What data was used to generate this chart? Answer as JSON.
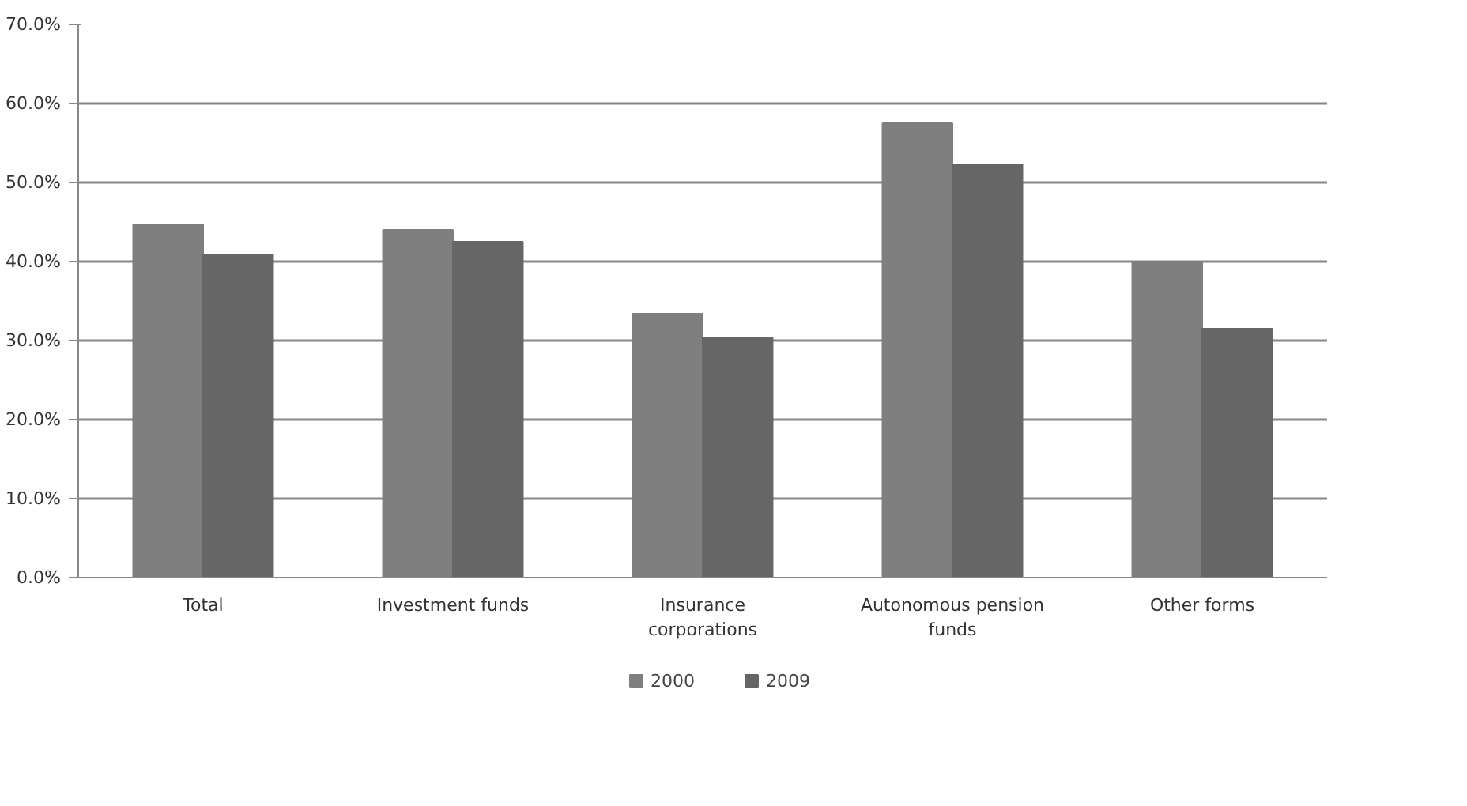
{
  "chart_data": {
    "type": "bar",
    "categories": [
      "Total",
      "Investment funds",
      "Insurance corporations",
      "Autonomous pension funds",
      "Other forms"
    ],
    "series": [
      {
        "name": "2000",
        "color": "#7f7f7f",
        "values": [
          44.7,
          44.0,
          33.4,
          57.5,
          40.0
        ]
      },
      {
        "name": "2009",
        "color": "#666666",
        "values": [
          40.9,
          42.5,
          30.4,
          52.3,
          31.5
        ]
      }
    ],
    "ylim": [
      0,
      70
    ],
    "yticks": [
      {
        "value": 0,
        "label": "0.0%"
      },
      {
        "value": 10,
        "label": "10.0%"
      },
      {
        "value": 20,
        "label": "20.0%"
      },
      {
        "value": 30,
        "label": "30.0%"
      },
      {
        "value": 40,
        "label": "40.0%"
      },
      {
        "value": 50,
        "label": "50.0%"
      },
      {
        "value": 60,
        "label": "60.0%"
      },
      {
        "value": 70,
        "label": "70.0%"
      }
    ],
    "grid": "y",
    "legend": "bottom"
  }
}
